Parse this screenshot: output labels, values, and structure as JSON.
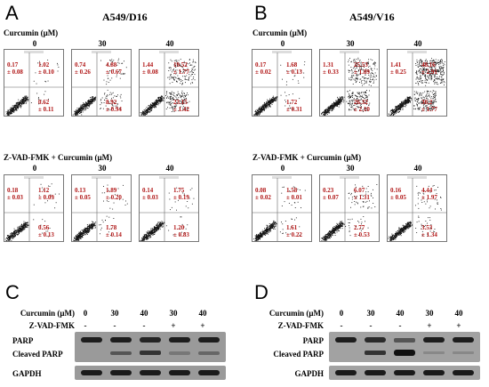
{
  "panels": {
    "A": {
      "letter": "A",
      "title": "A549/D16",
      "row1_label": "Curcumin (μM)",
      "row2_label": "Z-VAD-FMK + Curcumin (μM)",
      "concentrations": [
        "0",
        "30",
        "40"
      ],
      "row1_quadrants": [
        {
          "ul": [
            "0.17",
            "± 0.08"
          ],
          "ur": [
            "1.02",
            "± 0.10"
          ],
          "lr": [
            "0.62",
            "± 0.11"
          ]
        },
        {
          "ul": [
            "0.74",
            "± 0.26"
          ],
          "ur": [
            "4.88",
            "± 0.67"
          ],
          "lr": [
            "8.92",
            "± 0.94"
          ]
        },
        {
          "ul": [
            "1.44",
            "± 0.08"
          ],
          "ur": [
            "19.52",
            "± 1.77"
          ],
          "lr": [
            "23.15",
            "± 1.42"
          ]
        }
      ],
      "row2_quadrants": [
        {
          "ul": [
            "0.18",
            "± 0.03"
          ],
          "ur": [
            "1.12",
            "± 0.09"
          ],
          "lr": [
            "0.56",
            "± 0.13"
          ]
        },
        {
          "ul": [
            "0.13",
            "± 0.05"
          ],
          "ur": [
            "1.89",
            "± 0.20"
          ],
          "lr": [
            "1.78",
            "± 0.14"
          ]
        },
        {
          "ul": [
            "0.14",
            "± 0.03"
          ],
          "ur": [
            "1.75",
            "± 0.19"
          ],
          "lr": [
            "1.20",
            "± 0.83"
          ]
        }
      ]
    },
    "B": {
      "letter": "B",
      "title": "A549/V16",
      "row1_label": "Curcumin (μM)",
      "row2_label": "Z-VAD-FMK + Curcumin (μM)",
      "concentrations": [
        "0",
        "30",
        "40"
      ],
      "row1_quadrants": [
        {
          "ul": [
            "0.17",
            "± 0.02"
          ],
          "ur": [
            "1.68",
            "± 0.13"
          ],
          "lr": [
            "1.72",
            "± 0.31"
          ]
        },
        {
          "ul": [
            "1.31",
            "± 0.33"
          ],
          "ur": [
            "25.53",
            "± 1.89"
          ],
          "lr": [
            "26.32",
            "± 2.10"
          ]
        },
        {
          "ul": [
            "1.41",
            "± 0.25"
          ],
          "ur": [
            "48.16",
            "± 2.91"
          ],
          "lr": [
            "30.2",
            "± 1.77"
          ]
        }
      ],
      "row2_quadrants": [
        {
          "ul": [
            "0.08",
            "± 0.02"
          ],
          "ur": [
            "1.58",
            "± 0.01"
          ],
          "lr": [
            "1.61",
            "± 0.22"
          ]
        },
        {
          "ul": [
            "0.23",
            "± 0.07"
          ],
          "ur": [
            "6.07",
            "± 1.31"
          ],
          "lr": [
            "2.77",
            "± 0.53"
          ]
        },
        {
          "ul": [
            "0.16",
            "± 0.05"
          ],
          "ur": [
            "4.44",
            "± 1.97"
          ],
          "lr": [
            "3.53",
            "± 1.34"
          ]
        }
      ]
    },
    "C": {
      "letter": "C",
      "curcumin_label": "Curcumin (μM)",
      "zvad_label": "Z-VAD-FMK",
      "curcumin_values": [
        "0",
        "30",
        "40",
        "30",
        "40"
      ],
      "zvad_values": [
        "-",
        "-",
        "-",
        "+",
        "+"
      ],
      "bands": [
        "PARP",
        "Cleaved PARP",
        "GAPDH"
      ]
    },
    "D": {
      "letter": "D",
      "curcumin_label": "Curcumin (μM)",
      "zvad_label": "Z-VAD-FMK",
      "curcumin_values": [
        "0",
        "30",
        "40",
        "30",
        "40"
      ],
      "zvad_values": [
        "-",
        "-",
        "-",
        "+",
        "+"
      ],
      "bands": [
        "PARP",
        "Cleaved PARP",
        "GAPDH"
      ]
    }
  },
  "colors": {
    "quadrant_text": "#b01515",
    "blot_background": "#9a9a9a",
    "band": "#1a1a1a"
  }
}
